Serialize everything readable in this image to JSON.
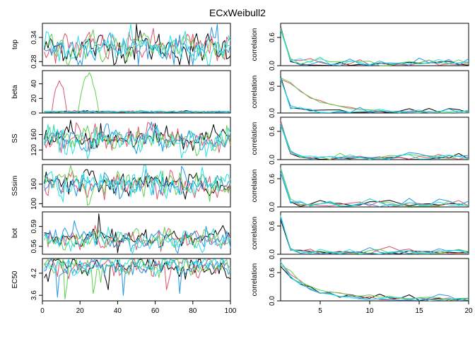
{
  "title": "ECxWeibull2",
  "colors": {
    "chain1": "#000000",
    "chain2": "#DF536B",
    "chain3": "#61D04F",
    "chain4": "#2297E6",
    "chain5": "#28E2E5"
  },
  "chart_data": [
    {
      "type": "line",
      "role": "trace",
      "param": "top",
      "ylabel": "top",
      "xlim": [
        0,
        100
      ],
      "ylim": [
        0.27,
        0.375
      ],
      "yticks": [
        "0.28",
        "0.34"
      ],
      "xticks": [],
      "center": 0.315,
      "spread": 0.022,
      "outliers": [
        [
          50,
          0.373
        ],
        [
          78,
          0.272
        ]
      ]
    },
    {
      "type": "line",
      "role": "trace",
      "param": "beta",
      "ylabel": "beta",
      "xlim": [
        0,
        100
      ],
      "ylim": [
        0,
        58
      ],
      "yticks": [
        "0",
        "20",
        "40"
      ],
      "xticks": [],
      "center": 1.5,
      "spread": 0.8,
      "spikes": [
        {
          "chain": 1,
          "from": 5,
          "to": 13,
          "peak": 45
        },
        {
          "chain": 2,
          "from": 19,
          "to": 30,
          "peak": 55
        }
      ]
    },
    {
      "type": "line",
      "role": "trace",
      "param": "SS",
      "ylabel": "SS",
      "xlim": [
        0,
        100
      ],
      "ylim": [
        95,
        205
      ],
      "yticks": [
        "120",
        "160"
      ],
      "xticks": [],
      "center": 148,
      "spread": 20
    },
    {
      "type": "line",
      "role": "trace",
      "param": "SSsim",
      "ylabel": "SSsim",
      "xlim": [
        0,
        100
      ],
      "ylim": [
        90,
        220
      ],
      "yticks": [
        "100",
        "160"
      ],
      "xticks": [],
      "center": 160,
      "spread": 24
    },
    {
      "type": "line",
      "role": "trace",
      "param": "bot",
      "ylabel": "bot",
      "xlim": [
        0,
        100
      ],
      "ylim": [
        0.548,
        0.612
      ],
      "yticks": [
        "0.56",
        "0.59"
      ],
      "xticks": [],
      "center": 0.571,
      "spread": 0.009,
      "outliers": [
        [
          30,
          0.609
        ],
        [
          40,
          0.55
        ]
      ]
    },
    {
      "type": "line",
      "role": "trace",
      "param": "EC50",
      "ylabel": "EC50",
      "xlim": [
        0,
        100
      ],
      "ylim": [
        3.45,
        4.6
      ],
      "yticks": [
        "3.6",
        "4.2"
      ],
      "xticks": [
        "0",
        "20",
        "40",
        "60",
        "80",
        "100"
      ],
      "center": 4.38,
      "spread": 0.16,
      "dips": [
        [
          8,
          3.55
        ],
        [
          12,
          3.5
        ],
        [
          27,
          3.65
        ],
        [
          35,
          3.75
        ],
        [
          43,
          3.6
        ],
        [
          66,
          3.75
        ],
        [
          73,
          3.65
        ]
      ]
    },
    {
      "type": "line",
      "role": "acf",
      "param": "top",
      "ylabel": "correlation",
      "xlim": [
        1,
        20
      ],
      "ylim": [
        0,
        0.9
      ],
      "yticks": [
        "0.0",
        "0.6"
      ],
      "xticks": [],
      "decay": 0.25,
      "noise": 0.07
    },
    {
      "type": "line",
      "role": "acf",
      "param": "beta",
      "ylabel": "correlation",
      "xlim": [
        1,
        20
      ],
      "ylim": [
        0,
        0.95
      ],
      "yticks": [
        "0.0",
        "0.6"
      ],
      "xticks": [],
      "slow": [
        1,
        2
      ],
      "decay": 0.3,
      "noise": 0.06
    },
    {
      "type": "line",
      "role": "acf",
      "param": "SS",
      "ylabel": "correlation",
      "xlim": [
        1,
        20
      ],
      "ylim": [
        0,
        0.9
      ],
      "yticks": [
        "0.0",
        "0.6"
      ],
      "xticks": [],
      "decay": 0.25,
      "noise": 0.06
    },
    {
      "type": "line",
      "role": "acf",
      "param": "SSsim",
      "ylabel": "correlation",
      "xlim": [
        1,
        20
      ],
      "ylim": [
        0,
        0.9
      ],
      "yticks": [
        "0.0",
        "0.6"
      ],
      "xticks": [],
      "decay": 0.25,
      "noise": 0.07
    },
    {
      "type": "line",
      "role": "acf",
      "param": "bot",
      "ylabel": "correlation",
      "xlim": [
        1,
        20
      ],
      "ylim": [
        0,
        0.9
      ],
      "yticks": [
        "0.0",
        "0.6"
      ],
      "xticks": [],
      "decay": 0.25,
      "noise": 0.06
    },
    {
      "type": "line",
      "role": "acf",
      "param": "EC50",
      "ylabel": "correlation",
      "xlim": [
        1,
        20
      ],
      "ylim": [
        0,
        0.9
      ],
      "yticks": [
        "0.0",
        "0.6"
      ],
      "xticks": [
        "5",
        "10",
        "15",
        "20"
      ],
      "medium": true,
      "decay": 0.5,
      "noise": 0.08
    }
  ]
}
